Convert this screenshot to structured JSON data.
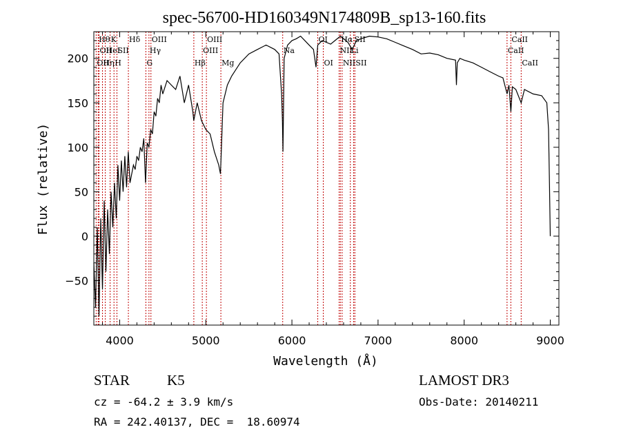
{
  "chart_data": {
    "type": "line",
    "title": "spec-56700-HD160349N174809B_sp13-160.fits",
    "xlabel": "Wavelength (Å)",
    "ylabel": "Flux (relative)",
    "xlim": [
      3700,
      9100
    ],
    "ylim": [
      -100,
      230
    ],
    "xticks": [
      4000,
      5000,
      6000,
      7000,
      8000,
      9000
    ],
    "yticks": [
      -50,
      0,
      50,
      100,
      150,
      200
    ],
    "grid": false,
    "series": [
      {
        "name": "spectrum",
        "x": [
          3700,
          3720,
          3740,
          3760,
          3780,
          3800,
          3820,
          3840,
          3860,
          3880,
          3900,
          3920,
          3940,
          3960,
          3980,
          4000,
          4020,
          4040,
          4060,
          4080,
          4100,
          4120,
          4140,
          4160,
          4180,
          4200,
          4220,
          4240,
          4260,
          4280,
          4300,
          4320,
          4340,
          4360,
          4380,
          4400,
          4420,
          4440,
          4460,
          4480,
          4500,
          4550,
          4600,
          4650,
          4700,
          4750,
          4800,
          4850,
          4860,
          4900,
          4950,
          5000,
          5050,
          5100,
          5150,
          5170,
          5180,
          5200,
          5250,
          5300,
          5400,
          5500,
          5600,
          5700,
          5800,
          5850,
          5880,
          5890,
          5896,
          5910,
          5950,
          6000,
          6050,
          6100,
          6150,
          6200,
          6250,
          6280,
          6300,
          6350,
          6400,
          6450,
          6500,
          6563,
          6600,
          6650,
          6700,
          6750,
          6800,
          6900,
          7000,
          7100,
          7200,
          7300,
          7400,
          7500,
          7600,
          7700,
          7800,
          7900,
          7910,
          7920,
          7950,
          8000,
          8100,
          8200,
          8300,
          8400,
          8450,
          8498,
          8520,
          8542,
          8560,
          8600,
          8662,
          8700,
          8800,
          8900,
          8960,
          8980,
          8990,
          9000
        ],
        "values": [
          -30,
          -80,
          10,
          -90,
          20,
          -60,
          40,
          -40,
          30,
          -20,
          50,
          10,
          60,
          20,
          80,
          40,
          85,
          50,
          90,
          55,
          95,
          60,
          70,
          80,
          75,
          90,
          85,
          100,
          95,
          110,
          60,
          105,
          100,
          120,
          115,
          140,
          135,
          155,
          150,
          170,
          160,
          175,
          170,
          165,
          180,
          150,
          170,
          140,
          130,
          150,
          130,
          120,
          115,
          95,
          80,
          70,
          95,
          150,
          170,
          180,
          195,
          205,
          210,
          215,
          210,
          205,
          160,
          130,
          95,
          200,
          215,
          220,
          222,
          225,
          220,
          215,
          210,
          190,
          215,
          220,
          218,
          216,
          220,
          225,
          222,
          218,
          210,
          220,
          222,
          225,
          224,
          222,
          218,
          214,
          210,
          205,
          206,
          204,
          200,
          198,
          170,
          195,
          200,
          198,
          195,
          190,
          185,
          180,
          178,
          160,
          170,
          140,
          168,
          165,
          150,
          165,
          160,
          158,
          150,
          120,
          60,
          0
        ],
        "color": "#000000"
      }
    ],
    "line_markers": [
      {
        "wavelength": 3727,
        "label": "OII",
        "row": 3
      },
      {
        "wavelength": 3750,
        "label": "Hθ",
        "row": 1
      },
      {
        "wavelength": 3760,
        "label": "OII",
        "row": 2
      },
      {
        "wavelength": 3800,
        "label": "Hη",
        "row": 3
      },
      {
        "wavelength": 3833,
        "label": "HeI",
        "row": 2
      },
      {
        "wavelength": 3889,
        "label": "K",
        "row": 1
      },
      {
        "wavelength": 3934,
        "label": "H",
        "row": 3
      },
      {
        "wavelength": 3968,
        "label": "SII",
        "row": 2
      },
      {
        "wavelength": 4101,
        "label": "Hδ",
        "row": 1
      },
      {
        "wavelength": 4304,
        "label": "G",
        "row": 3
      },
      {
        "wavelength": 4340,
        "label": "Hγ",
        "row": 2
      },
      {
        "wavelength": 4363,
        "label": "OIII",
        "row": 1
      },
      {
        "wavelength": 4861,
        "label": "Hβ",
        "row": 3
      },
      {
        "wavelength": 4959,
        "label": "OIII",
        "row": 2
      },
      {
        "wavelength": 5007,
        "label": "OIII",
        "row": 1
      },
      {
        "wavelength": 5175,
        "label": "Mg",
        "row": 3
      },
      {
        "wavelength": 5893,
        "label": "Na",
        "row": 2
      },
      {
        "wavelength": 6300,
        "label": "OI",
        "row": 1
      },
      {
        "wavelength": 6364,
        "label": "OI",
        "row": 3
      },
      {
        "wavelength": 6548,
        "label": "NII",
        "row": 2
      },
      {
        "wavelength": 6563,
        "label": "Hα",
        "row": 1
      },
      {
        "wavelength": 6583,
        "label": "NII",
        "row": 3
      },
      {
        "wavelength": 6678,
        "label": "Li",
        "row": 2
      },
      {
        "wavelength": 6717,
        "label": "SII",
        "row": 1
      },
      {
        "wavelength": 6731,
        "label": "SII",
        "row": 3
      },
      {
        "wavelength": 8498,
        "label": "CaII",
        "row": 2
      },
      {
        "wavelength": 8542,
        "label": "CaII",
        "row": 1
      },
      {
        "wavelength": 8662,
        "label": "CaII",
        "row": 3
      }
    ],
    "marker_color": "#c00000"
  },
  "info": {
    "class_label": "STAR",
    "subclass": "K5",
    "survey": "LAMOST DR3",
    "cz": "cz = -64.2 ± 3.9 km/s",
    "obs_date": "Obs-Date: 20140211",
    "coords": "RA = 242.40137, DEC =  18.60974"
  }
}
